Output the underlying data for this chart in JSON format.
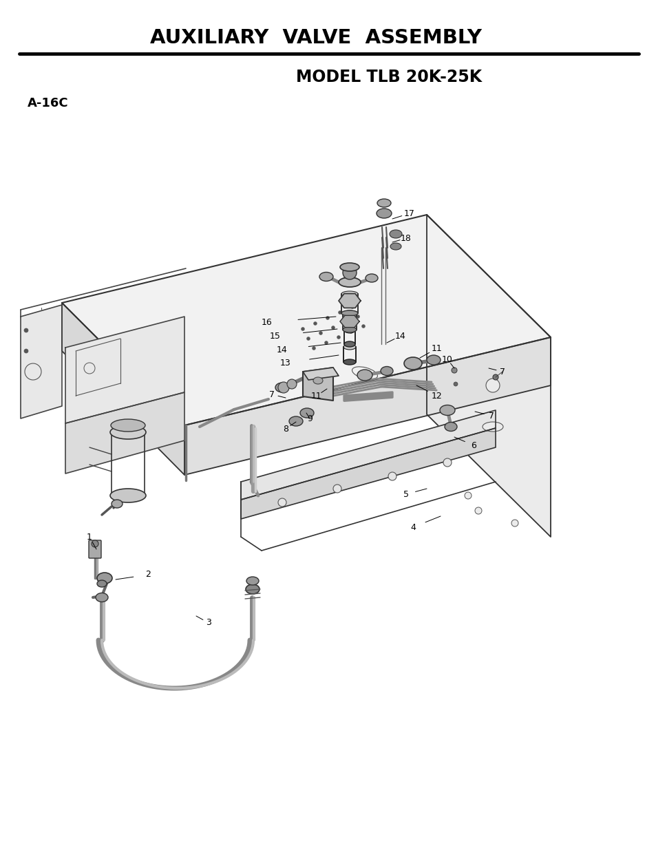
{
  "title": "AUXILIARY  VALVE  ASSEMBLY",
  "subtitle": "MODEL TLB 20K-25K",
  "part_label": "A-16C",
  "title_fontsize": 21,
  "subtitle_fontsize": 17,
  "part_label_fontsize": 13,
  "bg_color": "#ffffff",
  "text_color": "#000000",
  "line_color": "#000000",
  "diagram_color": "#555555"
}
